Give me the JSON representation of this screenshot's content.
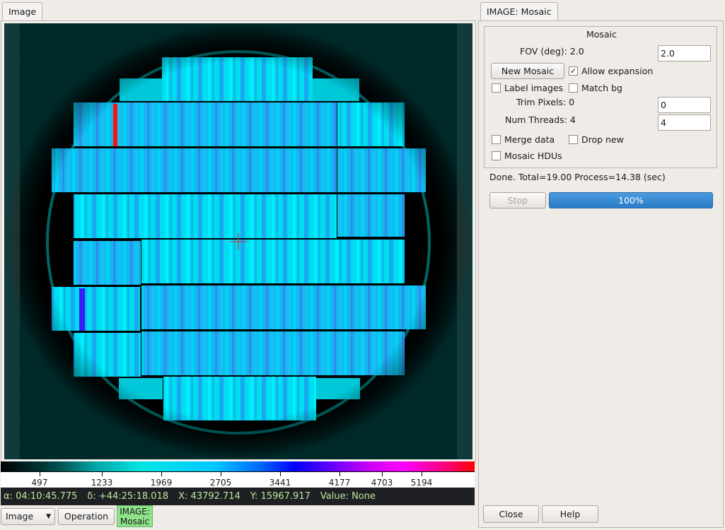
{
  "left_tab": {
    "label": "Image"
  },
  "right_tab": {
    "label": "IMAGE: Mosaic"
  },
  "colorbar": {
    "ticks": [
      "497",
      "1233",
      "1969",
      "2705",
      "3441",
      "4177",
      "4703",
      "5194"
    ]
  },
  "status": {
    "alpha": "α: 04:10:45.775",
    "delta": "δ: +44:25:18.018",
    "x": "X: 43792.714",
    "y": "Y: 15967.917",
    "value": "Value: None"
  },
  "bottom_toolbar": {
    "image_select": "Image",
    "operation_label": "Operation",
    "mode_line1": "IMAGE:",
    "mode_line2": "Mosaic"
  },
  "mosaic": {
    "title": "Mosaic",
    "fov_label": "FOV (deg): 2.0",
    "fov_value": "2.0",
    "new_mosaic_label": "New Mosaic",
    "allow_expansion_label": "Allow expansion",
    "label_images_label": "Label images",
    "match_bg_label": "Match bg",
    "trim_pixels_label": "Trim Pixels: 0",
    "trim_pixels_value": "0",
    "num_threads_label": "Num Threads: 4",
    "num_threads_value": "4",
    "merge_data_label": "Merge data",
    "drop_new_label": "Drop new",
    "mosaic_hdus_label": "Mosaic HDUs",
    "status_text": "Done. Total=19.00 Process=14.38 (sec)",
    "stop_label": "Stop",
    "progress_text": "100%",
    "progress": 1.0
  },
  "dialog": {
    "close_label": "Close",
    "help_label": "Help"
  },
  "colors": {
    "ccd_cyan": "#00e5ff",
    "ccd_blue": "#1aa3f0",
    "accent": "#2a7cc8",
    "status_green": "#b9e89a"
  }
}
